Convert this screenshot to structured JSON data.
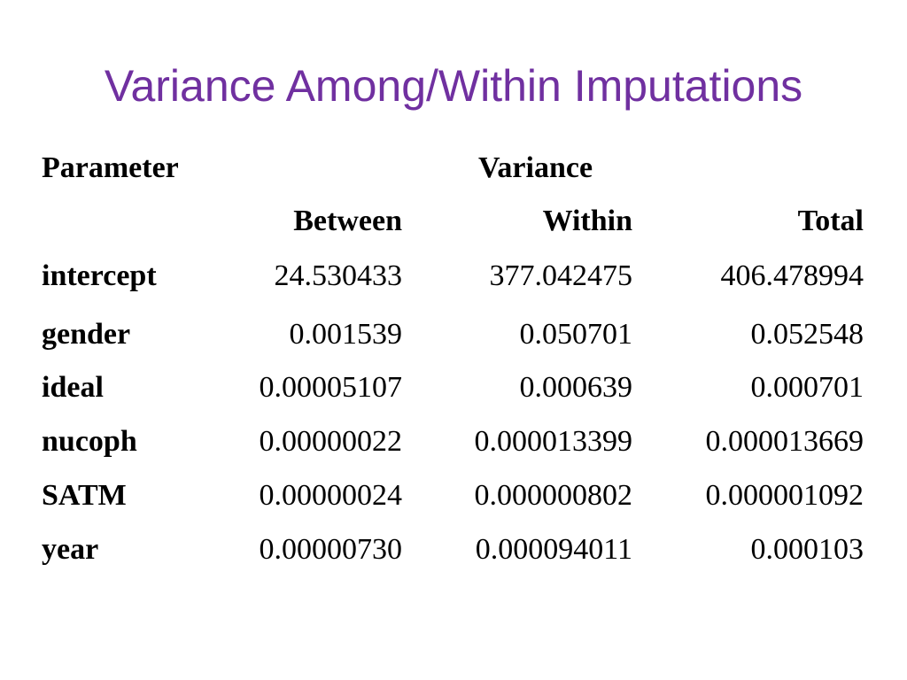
{
  "slide": {
    "title": "Variance Among/Within Imputations"
  },
  "table": {
    "header_parameter": "Parameter",
    "header_variance": "Variance",
    "columns": [
      "Between",
      "Within",
      "Total"
    ],
    "rows": [
      {
        "parameter": "intercept",
        "between": "24.530433",
        "within": "377.042475",
        "total": "406.478994"
      },
      {
        "parameter": "gender",
        "between": "0.001539",
        "within": "0.050701",
        "total": "0.052548"
      },
      {
        "parameter": "ideal",
        "between": "0.00005107",
        "within": "0.000639",
        "total": "0.000701"
      },
      {
        "parameter": "nucoph",
        "between": "0.00000022",
        "within": "0.000013399",
        "total": "0.000013669"
      },
      {
        "parameter": "SATM",
        "between": "0.00000024",
        "within": "0.000000802",
        "total": "0.000001092"
      },
      {
        "parameter": "year",
        "between": "0.00000730",
        "within": "0.000094011",
        "total": "0.000103"
      }
    ]
  },
  "colors": {
    "title": "#7030a0",
    "text": "#000000",
    "background": "#ffffff"
  }
}
